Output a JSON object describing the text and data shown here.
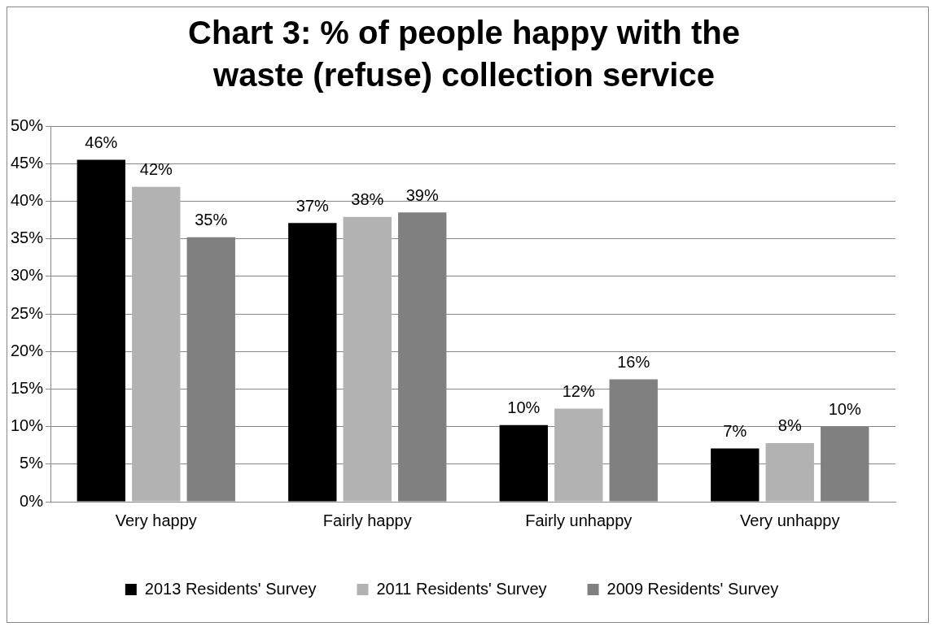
{
  "chart_data": {
    "type": "bar",
    "title": "Chart 3: % of people happy with the waste (refuse) collection service",
    "categories": [
      "Very happy",
      "Fairly happy",
      "Fairly unhappy",
      "Very unhappy"
    ],
    "series": [
      {
        "name": "2013 Residents' Survey",
        "color": "#000000",
        "values": [
          45.5,
          37.1,
          10.2,
          7.1
        ],
        "value_labels": [
          "46%",
          "37%",
          "10%",
          "7%"
        ]
      },
      {
        "name": "2011 Residents' Survey",
        "color": "#b2b2b2",
        "values": [
          41.9,
          37.9,
          12.4,
          7.8
        ],
        "value_labels": [
          "42%",
          "38%",
          "12%",
          "8%"
        ]
      },
      {
        "name": "2009 Residents' Survey",
        "color": "#808080",
        "values": [
          35.2,
          38.5,
          16.3,
          10.0
        ],
        "value_labels": [
          "35%",
          "39%",
          "16%",
          "10%"
        ]
      }
    ],
    "ylim": [
      0,
      50
    ],
    "yticks": [
      {
        "value": 0,
        "label": "0%"
      },
      {
        "value": 5,
        "label": "5%"
      },
      {
        "value": 10,
        "label": "10%"
      },
      {
        "value": 15,
        "label": "15%"
      },
      {
        "value": 20,
        "label": "20%"
      },
      {
        "value": 25,
        "label": "25%"
      },
      {
        "value": 30,
        "label": "30%"
      },
      {
        "value": 35,
        "label": "35%"
      },
      {
        "value": 40,
        "label": "40%"
      },
      {
        "value": 45,
        "label": "45%"
      },
      {
        "value": 50,
        "label": "50%"
      }
    ],
    "grid": "y",
    "legend": "bottom"
  }
}
